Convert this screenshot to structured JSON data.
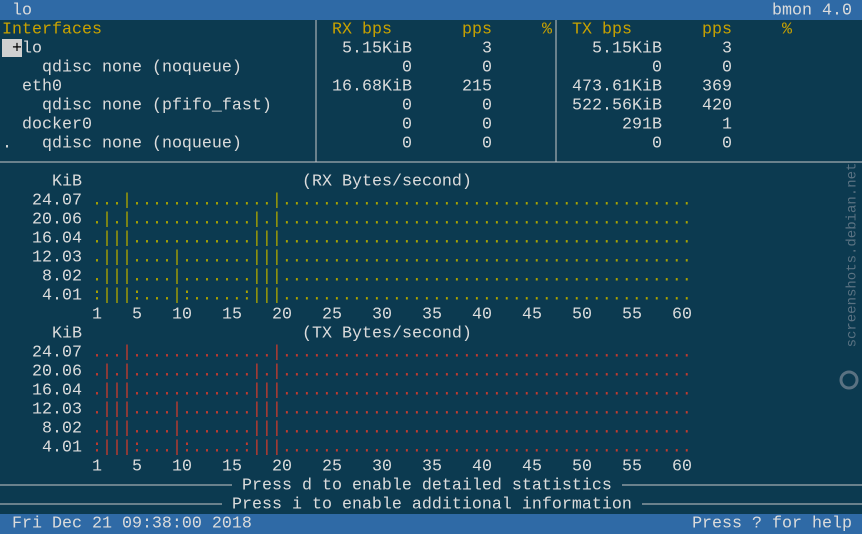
{
  "header": {
    "title": "lo",
    "app": "bmon 4.0"
  },
  "table": {
    "columns": {
      "interfaces": "Interfaces",
      "rx_bps": "RX bps",
      "rx_pps": "pps",
      "rx_pct": "%",
      "tx_bps": "TX bps",
      "tx_pps": "pps",
      "tx_pct": "%"
    },
    "cursor": "+",
    "rows": [
      {
        "name": "lo",
        "indent": 2,
        "rx_bps": "5.15KiB",
        "rx_pps": "3",
        "tx_bps": "5.15KiB",
        "tx_pps": "3"
      },
      {
        "name": "qdisc none (noqueue)",
        "indent": 4,
        "rx_bps": "0",
        "rx_pps": "0",
        "tx_bps": "0",
        "tx_pps": "0"
      },
      {
        "name": "eth0",
        "indent": 2,
        "rx_bps": "16.68KiB",
        "rx_pps": "215",
        "tx_bps": "473.61KiB",
        "tx_pps": "369"
      },
      {
        "name": "qdisc none (pfifo_fast)",
        "indent": 4,
        "rx_bps": "0",
        "rx_pps": "0",
        "tx_bps": "522.56KiB",
        "tx_pps": "420"
      },
      {
        "name": "docker0",
        "indent": 2,
        "rx_bps": "0",
        "rx_pps": "0",
        "tx_bps": "291B",
        "tx_pps": "1"
      },
      {
        "name": "qdisc none (noqueue)",
        "indent": 4,
        "marker": ".",
        "rx_bps": "0",
        "rx_pps": "0",
        "tx_bps": "0",
        "tx_pps": "0"
      }
    ]
  },
  "graphs": [
    {
      "unit": "KiB",
      "title": "(RX Bytes/second)",
      "color": "#a9a300",
      "yticks": [
        "24.07",
        "20.06",
        "16.04",
        "12.03",
        "8.02",
        "4.01"
      ],
      "rows": [
        "...|..............|.........................................",
        ".|.|............|.|.........................................",
        ".|||............|||.........................................",
        ".|||....|.......|||.........................................",
        ".|||....|.......|||.........................................",
        ":|||:...|:.....:|||........................................."
      ],
      "xticks": [
        1,
        5,
        10,
        15,
        20,
        25,
        30,
        35,
        40,
        45,
        50,
        55,
        60
      ]
    },
    {
      "unit": "KiB",
      "title": "(TX Bytes/second)",
      "color": "#c43a2e",
      "yticks": [
        "24.07",
        "20.06",
        "16.04",
        "12.03",
        "8.02",
        "4.01"
      ],
      "rows": [
        "...|..............|.........................................",
        ".|.|............|.|.........................................",
        ".|||............|||.........................................",
        ".|||....|.......|||.........................................",
        ".|||....|.......|||.........................................",
        ":|||:...|:.....:|||........................................."
      ],
      "xticks": [
        1,
        5,
        10,
        15,
        20,
        25,
        30,
        35,
        40,
        45,
        50,
        55,
        60
      ]
    }
  ],
  "footer": {
    "hint_details": "Press d to enable detailed statistics",
    "hint_info": "Press i to enable additional information",
    "datetime": "Fri Dec 21 09:38:00 2018",
    "help": "Press ? for help"
  },
  "watermark": "screenshots.debian.net"
}
